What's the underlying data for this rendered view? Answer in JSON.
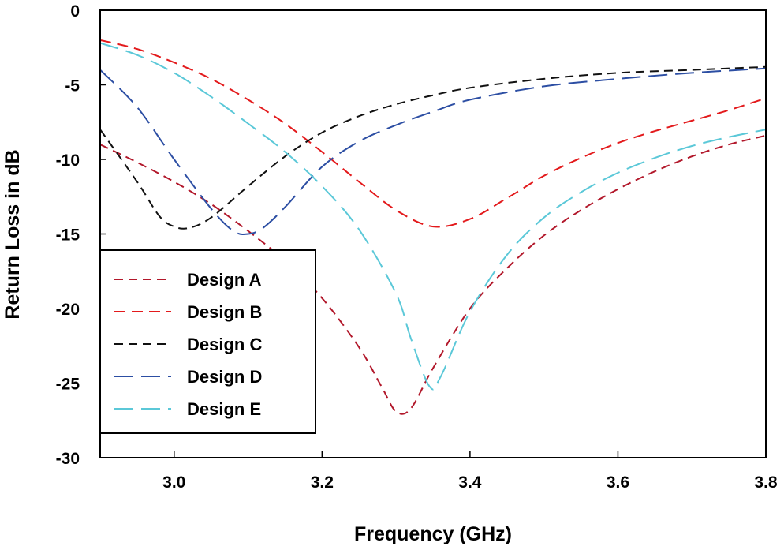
{
  "chart_data": {
    "type": "line",
    "title": "",
    "xlabel": "Frequency (GHz)",
    "ylabel": "Return Loss in dB",
    "xlim": [
      2.9,
      3.8
    ],
    "ylim": [
      -30,
      0
    ],
    "x_ticks": [
      "3.0",
      "3.2",
      "3.4",
      "3.6",
      "3.8"
    ],
    "y_ticks": [
      "0",
      "-5",
      "-10",
      "-15",
      "-20",
      "-25",
      "-30"
    ],
    "grid": false,
    "legend_position": "bottom-left",
    "series": [
      {
        "name": "Design A",
        "color": "#b2182b",
        "dash": "short",
        "points": [
          [
            2.9,
            -9.0
          ],
          [
            2.95,
            -10.2
          ],
          [
            3.0,
            -11.5
          ],
          [
            3.05,
            -13.0
          ],
          [
            3.1,
            -14.8
          ],
          [
            3.15,
            -16.8
          ],
          [
            3.2,
            -19.3
          ],
          [
            3.25,
            -22.6
          ],
          [
            3.28,
            -25.2
          ],
          [
            3.3,
            -26.9
          ],
          [
            3.32,
            -26.7
          ],
          [
            3.35,
            -24.0
          ],
          [
            3.4,
            -20.0
          ],
          [
            3.45,
            -17.3
          ],
          [
            3.5,
            -15.1
          ],
          [
            3.55,
            -13.4
          ],
          [
            3.6,
            -12.0
          ],
          [
            3.65,
            -10.8
          ],
          [
            3.7,
            -9.8
          ],
          [
            3.75,
            -9.0
          ],
          [
            3.8,
            -8.4
          ]
        ]
      },
      {
        "name": "Design B",
        "color": "#e31a1c",
        "dash": "medium",
        "points": [
          [
            2.9,
            -2.0
          ],
          [
            2.95,
            -2.6
          ],
          [
            3.0,
            -3.5
          ],
          [
            3.05,
            -4.6
          ],
          [
            3.1,
            -6.0
          ],
          [
            3.15,
            -7.6
          ],
          [
            3.2,
            -9.5
          ],
          [
            3.25,
            -11.5
          ],
          [
            3.3,
            -13.4
          ],
          [
            3.35,
            -14.5
          ],
          [
            3.4,
            -14.0
          ],
          [
            3.45,
            -12.6
          ],
          [
            3.5,
            -11.1
          ],
          [
            3.55,
            -9.9
          ],
          [
            3.6,
            -8.9
          ],
          [
            3.65,
            -8.1
          ],
          [
            3.7,
            -7.4
          ],
          [
            3.75,
            -6.7
          ],
          [
            3.8,
            -5.9
          ]
        ]
      },
      {
        "name": "Design C",
        "color": "#111111",
        "dash": "short",
        "points": [
          [
            2.9,
            -8.0
          ],
          [
            2.95,
            -11.5
          ],
          [
            2.98,
            -13.8
          ],
          [
            3.0,
            -14.5
          ],
          [
            3.02,
            -14.6
          ],
          [
            3.05,
            -13.9
          ],
          [
            3.1,
            -11.8
          ],
          [
            3.15,
            -9.8
          ],
          [
            3.2,
            -8.2
          ],
          [
            3.25,
            -7.1
          ],
          [
            3.3,
            -6.3
          ],
          [
            3.35,
            -5.7
          ],
          [
            3.4,
            -5.2
          ],
          [
            3.5,
            -4.6
          ],
          [
            3.6,
            -4.2
          ],
          [
            3.7,
            -4.0
          ],
          [
            3.8,
            -3.8
          ]
        ]
      },
      {
        "name": "Design D",
        "color": "#2c4ea3",
        "dash": "long",
        "points": [
          [
            2.9,
            -4.0
          ],
          [
            2.95,
            -6.5
          ],
          [
            3.0,
            -10.0
          ],
          [
            3.05,
            -13.3
          ],
          [
            3.08,
            -14.8
          ],
          [
            3.1,
            -15.0
          ],
          [
            3.12,
            -14.6
          ],
          [
            3.15,
            -13.2
          ],
          [
            3.2,
            -10.5
          ],
          [
            3.25,
            -8.8
          ],
          [
            3.3,
            -7.7
          ],
          [
            3.35,
            -6.8
          ],
          [
            3.4,
            -6.0
          ],
          [
            3.5,
            -5.1
          ],
          [
            3.6,
            -4.6
          ],
          [
            3.7,
            -4.2
          ],
          [
            3.8,
            -3.9
          ]
        ]
      },
      {
        "name": "Design E",
        "color": "#5bc8d8",
        "dash": "long",
        "points": [
          [
            2.9,
            -2.2
          ],
          [
            2.95,
            -3.0
          ],
          [
            3.0,
            -4.2
          ],
          [
            3.05,
            -5.8
          ],
          [
            3.1,
            -7.6
          ],
          [
            3.15,
            -9.5
          ],
          [
            3.2,
            -11.8
          ],
          [
            3.25,
            -14.7
          ],
          [
            3.3,
            -19.0
          ],
          [
            3.32,
            -22.0
          ],
          [
            3.345,
            -25.2
          ],
          [
            3.36,
            -24.6
          ],
          [
            3.4,
            -20.2
          ],
          [
            3.45,
            -16.4
          ],
          [
            3.5,
            -13.9
          ],
          [
            3.55,
            -12.2
          ],
          [
            3.6,
            -10.9
          ],
          [
            3.65,
            -9.9
          ],
          [
            3.7,
            -9.1
          ],
          [
            3.75,
            -8.5
          ],
          [
            3.8,
            -8.0
          ]
        ]
      }
    ]
  }
}
